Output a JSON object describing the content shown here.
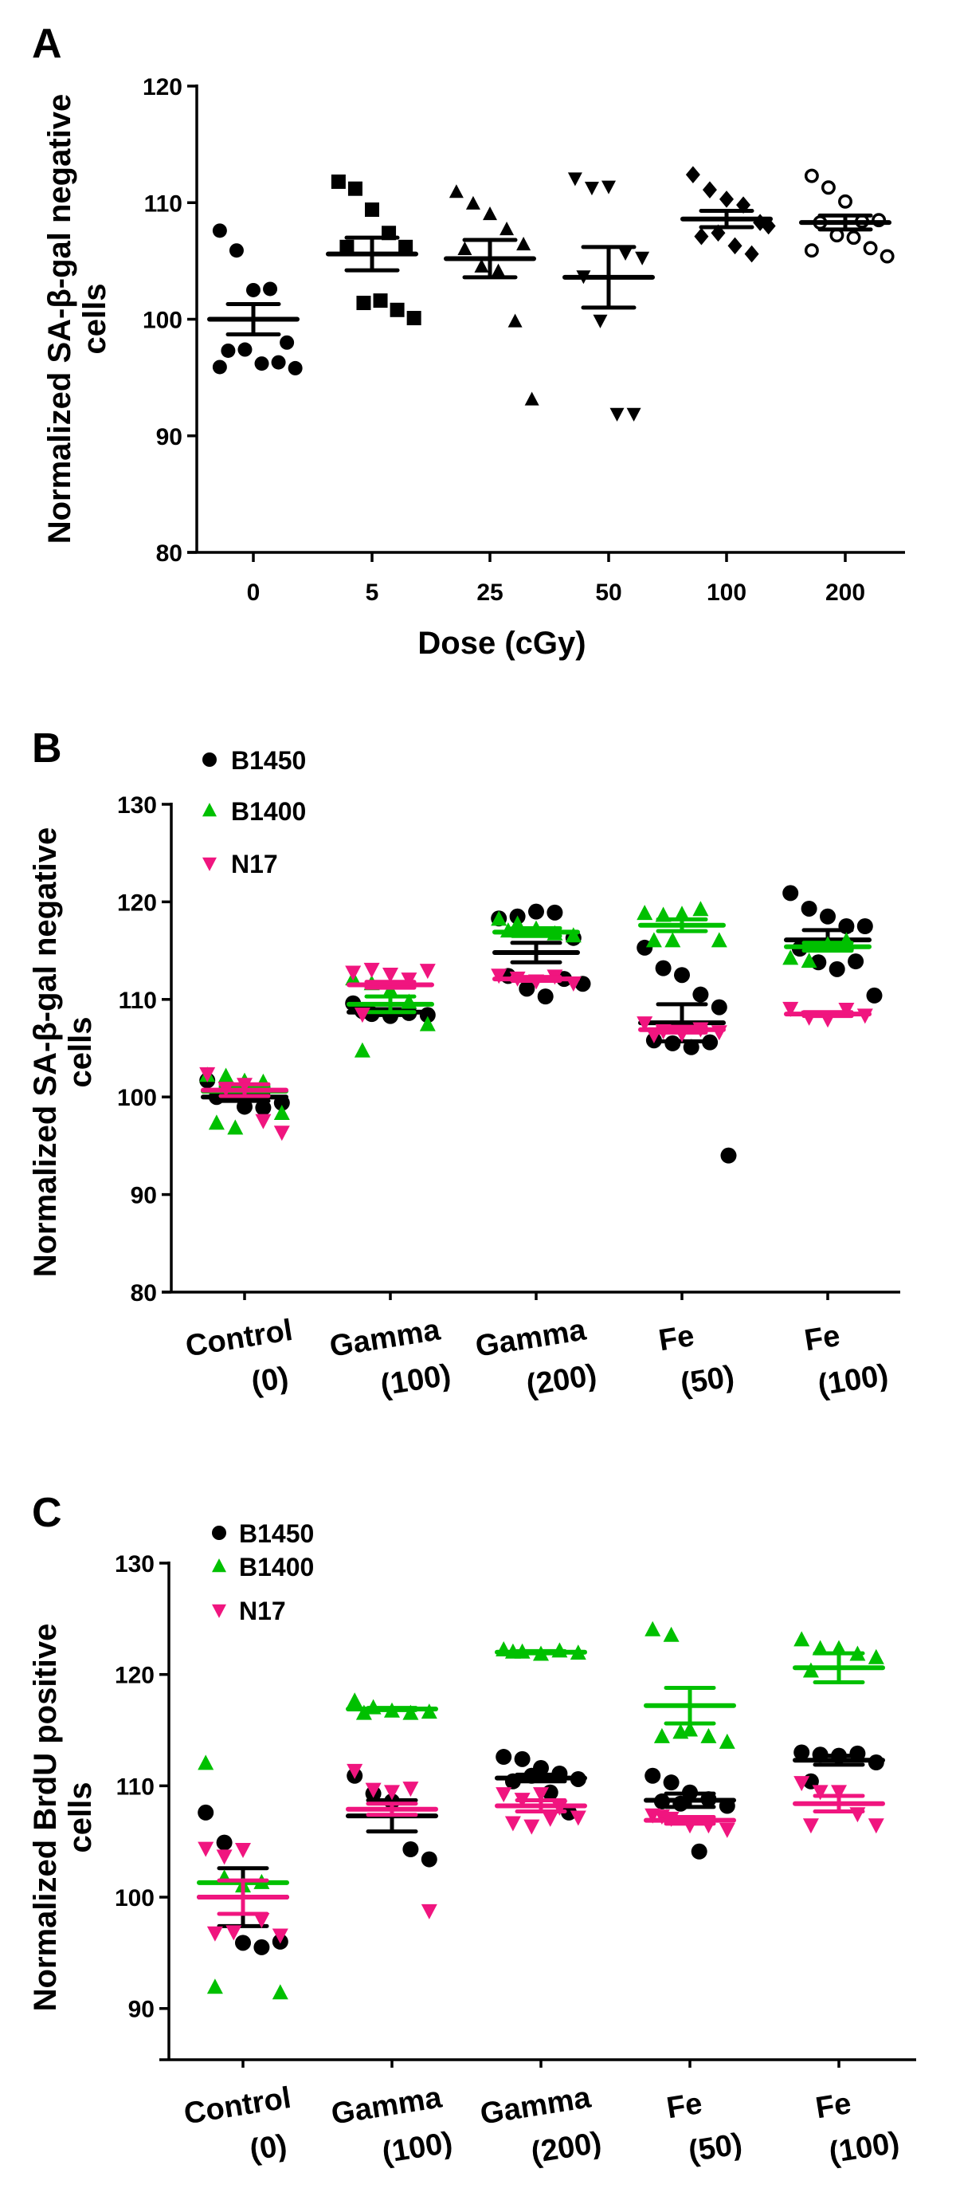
{
  "figure": {
    "panels": [
      "A",
      "B",
      "C"
    ]
  },
  "colors": {
    "B1450": "#000000",
    "B1400": "#00c000",
    "N17": "#f0157f",
    "axis": "#000000"
  },
  "chart_data": [
    {
      "panel": "A",
      "type": "scatter",
      "title": "",
      "xlabel": "Dose (cGy)",
      "ylabel_line1": "Normalized SA-β-gal negative",
      "ylabel_line2": "cells",
      "categories": [
        "0",
        "5",
        "25",
        "50",
        "100",
        "200"
      ],
      "ylim": [
        80,
        120
      ],
      "yticks": [
        80,
        90,
        100,
        110,
        120
      ],
      "grid": false,
      "legend": null,
      "series": [
        {
          "name": "Dose groups",
          "color": "#000000",
          "groups": [
            {
              "category": "0",
              "marker": "circle",
              "mean": 100.0,
              "sem": 1.3,
              "points": [
                107.6,
                105.9,
                102.5,
                102.6,
                98.0,
                97.3,
                97.4,
                96.2,
                96.3,
                95.8,
                95.9
              ]
            },
            {
              "category": "5",
              "marker": "square",
              "mean": 105.6,
              "sem": 1.4,
              "points": [
                111.8,
                111.2,
                109.4,
                107.4,
                106.2,
                106.2,
                101.4,
                101.6,
                100.8,
                100.1
              ]
            },
            {
              "category": "25",
              "marker": "triangle-up",
              "mean": 105.2,
              "sem": 1.6,
              "points": [
                110.9,
                109.9,
                109.0,
                107.7,
                106.4,
                106.0,
                104.5,
                104.1,
                99.8,
                93.1
              ]
            },
            {
              "category": "50",
              "marker": "triangle-down",
              "mean": 103.6,
              "sem": 2.6,
              "points": [
                112.1,
                111.3,
                111.4,
                105.7,
                105.3,
                103.7,
                99.9,
                91.9,
                91.9
              ]
            },
            {
              "category": "100",
              "marker": "diamond",
              "mean": 108.6,
              "sem": 0.7,
              "points": [
                112.4,
                111.1,
                110.3,
                109.8,
                108.3,
                107.1,
                107.4,
                106.3,
                105.6,
                108.0
              ]
            },
            {
              "category": "200",
              "marker": "circle-open",
              "mean": 108.3,
              "sem": 0.6,
              "points": [
                112.3,
                111.3,
                110.1,
                108.4,
                108.5,
                108.3,
                107.2,
                107.0,
                106.1,
                105.4,
                105.9
              ]
            }
          ]
        }
      ]
    },
    {
      "panel": "B",
      "type": "scatter",
      "title": "",
      "xlabel": "",
      "ylabel_line1": "Normalized SA-β-gal negative",
      "ylabel_line2": "cells",
      "categories": [
        [
          "Control",
          "(0)"
        ],
        [
          "Gamma",
          "(100)"
        ],
        [
          "Gamma",
          "(200)"
        ],
        [
          "Fe",
          "(50)"
        ],
        [
          "Fe",
          "(100)"
        ]
      ],
      "ylim": [
        80,
        130
      ],
      "yticks": [
        80,
        90,
        100,
        110,
        120,
        130
      ],
      "grid": false,
      "legend_position": "top-left",
      "series": [
        {
          "name": "B1450",
          "marker": "circle",
          "color": "#000000",
          "groups": [
            {
              "mean": 100.0,
              "sem": 0.4,
              "points": [
                101.7,
                100.6,
                99.0,
                98.9,
                99.4,
                100.0
              ]
            },
            {
              "mean": 108.7,
              "sem": 0.3,
              "points": [
                109.6,
                108.5,
                108.3,
                108.6,
                108.4,
                108.8
              ]
            },
            {
              "mean": 114.8,
              "sem": 1.0,
              "points": [
                118.3,
                118.5,
                119.0,
                118.9,
                116.3,
                112.4,
                111.1,
                110.3,
                112.1,
                111.6
              ]
            },
            {
              "mean": 107.6,
              "sem": 1.9,
              "points": [
                115.3,
                113.2,
                112.5,
                110.5,
                109.2,
                105.8,
                105.5,
                105.1,
                105.6,
                94.0
              ]
            },
            {
              "mean": 116.1,
              "sem": 1.0,
              "points": [
                120.9,
                119.3,
                118.5,
                117.5,
                117.5,
                115.2,
                113.8,
                113.1,
                113.9,
                110.4
              ]
            }
          ]
        },
        {
          "name": "B1400",
          "marker": "triangle-up",
          "color": "#00c000",
          "groups": [
            {
              "mean": 100.6,
              "sem": 0.5,
              "points": [
                102.2,
                102.1,
                101.6,
                101.5,
                98.3,
                97.3,
                96.8
              ]
            },
            {
              "mean": 109.5,
              "sem": 0.8,
              "points": [
                112.1,
                111.6,
                110.9,
                109.7,
                107.4,
                104.7
              ]
            },
            {
              "mean": 116.9,
              "sem": 0.4,
              "points": [
                118.2,
                117.7,
                117.2,
                116.7,
                116.5,
                117.0
              ]
            },
            {
              "mean": 117.6,
              "sem": 0.6,
              "points": [
                118.8,
                118.6,
                118.7,
                119.2,
                116.0,
                116.0,
                116.0
              ]
            },
            {
              "mean": 115.4,
              "sem": 0.4,
              "points": [
                114.2,
                113.9,
                115.6,
                116.0
              ]
            }
          ]
        },
        {
          "name": "N17",
          "marker": "triangle-down",
          "color": "#f0157f",
          "groups": [
            {
              "mean": 100.7,
              "sem": 0.6,
              "points": [
                102.4,
                100.9,
                101.3,
                97.6,
                96.4
              ]
            },
            {
              "mean": 111.5,
              "sem": 0.3,
              "points": [
                112.8,
                113.1,
                112.6,
                112.1,
                113.0,
                108.5
              ]
            },
            {
              "mean": 112.1,
              "sem": 0.2,
              "points": [
                112.5,
                112.2,
                111.9,
                112.4,
                111.7
              ]
            },
            {
              "mean": 106.9,
              "sem": 0.3,
              "points": [
                107.6,
                106.8,
                106.5,
                107.0,
                106.7,
                106.4
              ]
            },
            {
              "mean": 108.5,
              "sem": 0.2,
              "points": [
                109.1,
                108.2,
                108.0,
                109.0,
                108.4
              ]
            }
          ]
        }
      ]
    },
    {
      "panel": "C",
      "type": "scatter",
      "title": "",
      "xlabel": "",
      "ylabel_line1": "Normalized BrdU positive",
      "ylabel_line2": "cells",
      "categories": [
        [
          "Control",
          "(0)"
        ],
        [
          "Gamma",
          "(100)"
        ],
        [
          "Gamma",
          "(200)"
        ],
        [
          "Fe",
          "(50)"
        ],
        [
          "Fe",
          "(100)"
        ]
      ],
      "ylim": [
        85.4,
        130
      ],
      "yticks": [
        90,
        100,
        110,
        120,
        130
      ],
      "grid": false,
      "legend_position": "top-left",
      "series": [
        {
          "name": "B1450",
          "marker": "circle",
          "color": "#000000",
          "groups": [
            {
              "mean": 100.0,
              "sem": 2.6,
              "points": [
                107.6,
                104.9,
                95.9,
                95.5,
                96.0
              ]
            },
            {
              "mean": 107.3,
              "sem": 1.4,
              "points": [
                110.9,
                109.3,
                108.6,
                104.3,
                103.4
              ]
            },
            {
              "mean": 110.7,
              "sem": 0.3,
              "points": [
                112.6,
                112.4,
                111.6,
                111.1,
                110.6,
                110.4,
                110.9,
                109.4,
                107.6
              ]
            },
            {
              "mean": 108.7,
              "sem": 0.6,
              "points": [
                110.9,
                110.3,
                109.4,
                108.8,
                108.2,
                108.6,
                108.4,
                104.1
              ]
            },
            {
              "mean": 112.3,
              "sem": 0.4,
              "points": [
                113.0,
                112.8,
                112.7,
                112.9,
                112.1,
                110.4
              ]
            }
          ]
        },
        {
          "name": "B1400",
          "marker": "triangle-up",
          "color": "#00c000",
          "groups": [
            {
              "mean": 101.3,
              "sem": 0.0,
              "points": [
                112.0,
                101.7,
                101.0,
                101.3,
                91.4,
                91.9
              ]
            },
            {
              "mean": 116.9,
              "sem": 0.1,
              "points": [
                117.6,
                117.0,
                116.7,
                116.5,
                116.6,
                116.5
              ]
            },
            {
              "mean": 122.0,
              "sem": 0.1,
              "points": [
                122.2,
                122.0,
                121.8,
                122.1,
                121.9,
                122.0
              ]
            },
            {
              "mean": 117.2,
              "sem": 1.6,
              "points": [
                124.0,
                123.5,
                115.0,
                114.4,
                113.9,
                114.4,
                114.8
              ]
            },
            {
              "mean": 120.6,
              "sem": 1.3,
              "points": [
                123.1,
                122.3,
                122.3,
                121.8,
                121.5,
                120.3
              ]
            }
          ]
        },
        {
          "name": "N17",
          "marker": "triangle-down",
          "color": "#f0157f",
          "groups": [
            {
              "mean": 100.0,
              "sem": 1.5,
              "points": [
                104.4,
                103.7,
                104.3,
                98.0,
                96.6,
                96.8,
                96.9
              ]
            },
            {
              "mean": 107.9,
              "sem": 0.5,
              "points": [
                111.4,
                109.7,
                109.5,
                109.8,
                98.8
              ]
            },
            {
              "mean": 108.2,
              "sem": 0.5,
              "points": [
                109.3,
                108.8,
                109.3,
                108.1,
                107.2,
                106.7,
                106.4,
                107.1
              ]
            },
            {
              "mean": 106.9,
              "sem": 0.3,
              "points": [
                107.4,
                107.1,
                106.5,
                106.5,
                106.1,
                107.3
              ]
            },
            {
              "mean": 108.4,
              "sem": 0.7,
              "points": [
                110.3,
                109.5,
                109.5,
                107.5,
                106.5,
                106.5
              ]
            }
          ]
        }
      ]
    }
  ]
}
